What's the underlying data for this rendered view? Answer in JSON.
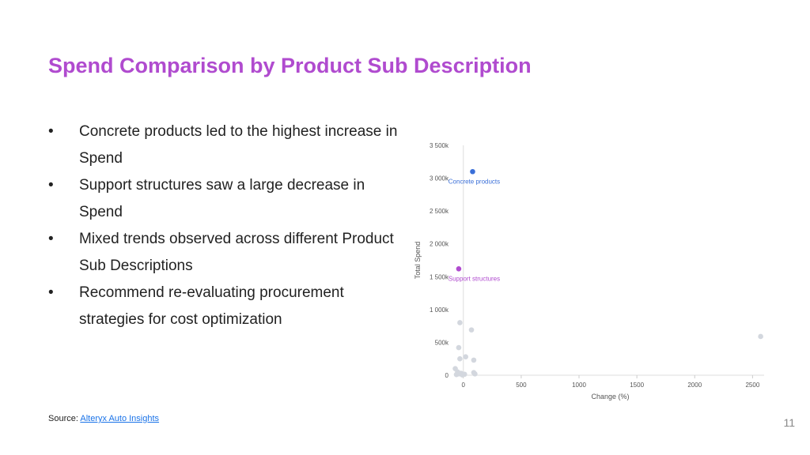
{
  "slide": {
    "title": "Spend Comparison by Product Sub Description",
    "bullets": [
      "Concrete products led to the highest increase in Spend",
      "Support structures saw a large decrease in Spend",
      "Mixed trends observed across different Product Sub Descriptions",
      "Recommend re-evaluating procurement strategies for cost optimization"
    ],
    "bullet_marker": "•",
    "source_label": "Source:",
    "source_link": "Alteryx Auto Insights",
    "page_number": "11"
  },
  "colors": {
    "title": "#b04bcf",
    "highlight_blue": "#3a6fd8",
    "highlight_purple": "#b04bcf",
    "other_points": "#d3d7de"
  },
  "chart_data": {
    "type": "scatter",
    "xlabel": "Change (%)",
    "ylabel": "Total Spend",
    "xlim": [
      -60,
      2600
    ],
    "ylim": [
      0,
      3500000
    ],
    "x_ticks": [
      0,
      500,
      1000,
      1500,
      2000,
      2500
    ],
    "x_tick_labels": [
      "0",
      "500",
      "1000",
      "1500",
      "2000",
      "2500"
    ],
    "y_ticks": [
      0,
      500000,
      1000000,
      1500000,
      2000000,
      2500000,
      3000000,
      3500000
    ],
    "y_tick_labels": [
      "0",
      "500k",
      "1 000k",
      "1 500k",
      "2 000k",
      "2 500k",
      "3 000k",
      "3 500k"
    ],
    "highlighted": [
      {
        "label": "Concrete products",
        "x": 80,
        "y": 3100000,
        "color": "#3a6fd8"
      },
      {
        "label": "Support structures",
        "x": -40,
        "y": 1620000,
        "color": "#b04bcf"
      }
    ],
    "points": [
      {
        "x": -30,
        "y": 800000
      },
      {
        "x": 70,
        "y": 690000
      },
      {
        "x": -40,
        "y": 420000
      },
      {
        "x": 20,
        "y": 280000
      },
      {
        "x": -30,
        "y": 250000
      },
      {
        "x": 90,
        "y": 230000
      },
      {
        "x": -70,
        "y": 100000
      },
      {
        "x": -50,
        "y": 50000
      },
      {
        "x": -40,
        "y": 20000
      },
      {
        "x": -20,
        "y": 30000
      },
      {
        "x": -10,
        "y": 5000
      },
      {
        "x": 10,
        "y": 15000
      },
      {
        "x": 90,
        "y": 40000
      },
      {
        "x": 100,
        "y": 20000
      },
      {
        "x": -60,
        "y": 10000
      },
      {
        "x": 2570,
        "y": 590000
      }
    ]
  }
}
